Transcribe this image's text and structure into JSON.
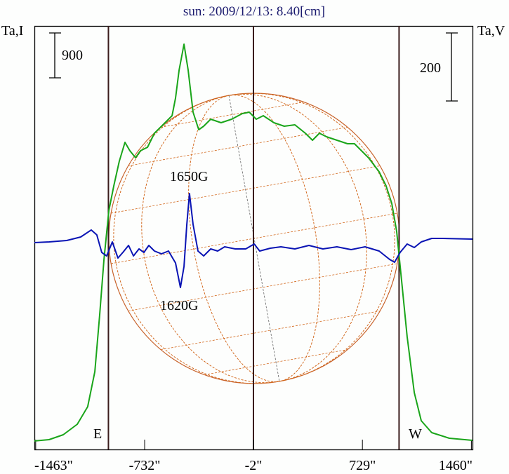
{
  "chart_data": {
    "type": "line",
    "title": "sun: 2009/12/13: 8.40[cm]",
    "ylabel_left": "Ta,I",
    "ylabel_right": "Ta,V",
    "scale_bar_left": "900",
    "scale_bar_right": "200",
    "xlim": [
      -1465,
      1467
    ],
    "xticks": [
      "-1463\"",
      "-732\"",
      "-2\"",
      "729\"",
      "1460\""
    ],
    "xtick_values": [
      -1463,
      -732,
      -2,
      729,
      1460
    ],
    "limb_lines": [
      -975,
      -2,
      975
    ],
    "limb_labels": {
      "east": "E",
      "west": "W"
    },
    "annotations": [
      {
        "text": "1650G",
        "x": -470,
        "y_v": 132
      },
      {
        "text": "1620G",
        "x": -490,
        "y_v": -136
      }
    ],
    "colors": {
      "intensity": "#1aa51a",
      "polarization": "#0a14b4",
      "frame": "#000000",
      "limb": "#3a1c1c",
      "grid": "#d2691e",
      "title": "#1a1a6e"
    },
    "series": [
      {
        "name": "Ta,I",
        "axis": "left",
        "x": [
          -1472,
          -1373,
          -1278,
          -1184,
          -1114,
          -1066,
          -1034,
          -1005,
          -972,
          -939,
          -902,
          -864,
          -831,
          -793,
          -760,
          -713,
          -666,
          -595,
          -548,
          -525,
          -501,
          -468,
          -440,
          -407,
          -369,
          -336,
          -289,
          -219,
          -148,
          -77,
          -30,
          17,
          64,
          135,
          205,
          276,
          346,
          394,
          441,
          488,
          558,
          629,
          676,
          723,
          770,
          841,
          888,
          926,
          959,
          992,
          1029,
          1077,
          1124,
          1194,
          1312,
          1467
        ],
        "y": [
          169,
          196,
          294,
          504,
          854,
          1554,
          2674,
          3794,
          4774,
          5264,
          5754,
          6132,
          5964,
          5824,
          5964,
          6034,
          6314,
          6524,
          6664,
          7014,
          7574,
          8092,
          7574,
          6734,
          6384,
          6454,
          6594,
          6524,
          6594,
          6706,
          6734,
          6594,
          6664,
          6524,
          6454,
          6482,
          6314,
          6174,
          6314,
          6244,
          6174,
          6104,
          6104,
          5964,
          5824,
          5544,
          5264,
          4914,
          4354,
          3374,
          2254,
          1134,
          574,
          336,
          224,
          182
        ]
      },
      {
        "name": "Ta,V",
        "axis": "right",
        "x": [
          -1472,
          -1373,
          -1255,
          -1161,
          -1090,
          -1053,
          -1020,
          -987,
          -949,
          -911,
          -878,
          -840,
          -807,
          -770,
          -737,
          -704,
          -666,
          -619,
          -572,
          -525,
          -492,
          -468,
          -449,
          -431,
          -407,
          -374,
          -336,
          -289,
          -242,
          -195,
          -124,
          -54,
          3,
          40,
          111,
          182,
          276,
          370,
          464,
          558,
          653,
          747,
          841,
          912,
          945,
          982,
          1029,
          1077,
          1124,
          1194,
          1265,
          1467
        ],
        "y": [
          -8,
          -6,
          -2,
          8,
          28,
          14,
          -36,
          -46,
          -6,
          -52,
          -36,
          -16,
          -46,
          -26,
          -36,
          -16,
          -32,
          -40,
          -32,
          -66,
          -136,
          -76,
          44,
          132,
          44,
          -32,
          -46,
          -26,
          -32,
          -20,
          -26,
          -26,
          -12,
          -32,
          -24,
          -20,
          -26,
          -16,
          -26,
          -20,
          -28,
          -20,
          -32,
          -56,
          -64,
          -36,
          -12,
          -22,
          -6,
          4,
          4,
          2
        ]
      }
    ]
  }
}
